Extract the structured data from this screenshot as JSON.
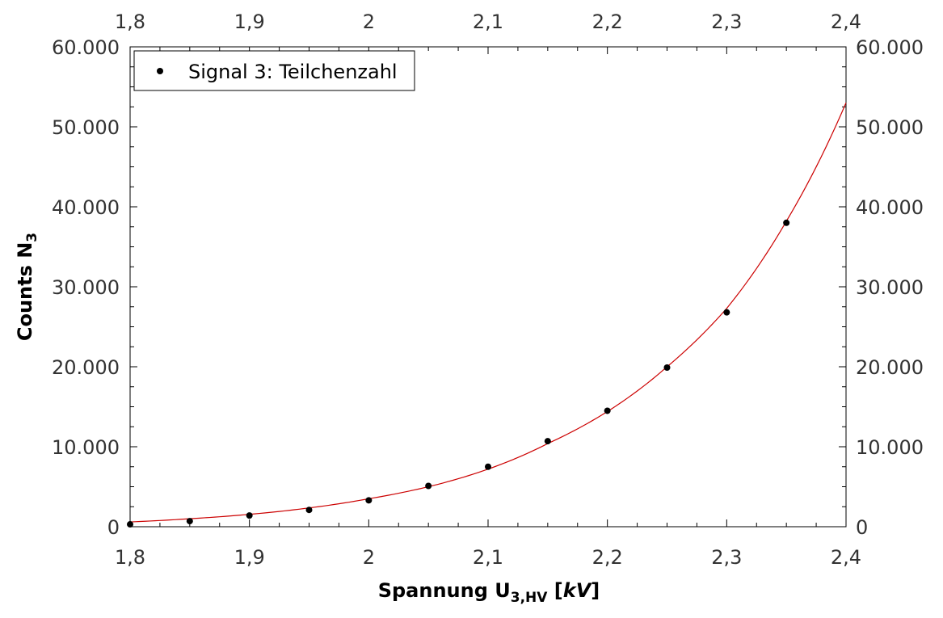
{
  "chart_data": {
    "type": "scatter",
    "xlabel": {
      "main": "Spannung U",
      "sub": "3,HV",
      "unit_open": " [",
      "unit": "kV",
      "unit_close": "]"
    },
    "ylabel": {
      "main": "Counts N",
      "sub": "3"
    },
    "xlim": [
      1.8,
      2.4
    ],
    "ylim": [
      0,
      60000
    ],
    "x_ticks": [
      {
        "value": 1.8,
        "label": "1,8"
      },
      {
        "value": 1.9,
        "label": "1,9"
      },
      {
        "value": 2.0,
        "label": "2"
      },
      {
        "value": 2.1,
        "label": "2,1"
      },
      {
        "value": 2.2,
        "label": "2,2"
      },
      {
        "value": 2.3,
        "label": "2,3"
      },
      {
        "value": 2.4,
        "label": "2,4"
      }
    ],
    "y_ticks": [
      {
        "value": 0,
        "label": "0"
      },
      {
        "value": 10000,
        "label": "10.000"
      },
      {
        "value": 20000,
        "label": "20.000"
      },
      {
        "value": 30000,
        "label": "30.000"
      },
      {
        "value": 40000,
        "label": "40.000"
      },
      {
        "value": 50000,
        "label": "50.000"
      },
      {
        "value": 60000,
        "label": "60.000"
      }
    ],
    "grid": false,
    "legend_placement": "top-left",
    "series": [
      {
        "name": "Signal 3: Teilchenzahl",
        "type": "scatter",
        "color": "#000000",
        "x": [
          1.8,
          1.85,
          1.9,
          1.95,
          2.0,
          2.05,
          2.1,
          2.15,
          2.2,
          2.25,
          2.3,
          2.35
        ],
        "y": [
          300,
          700,
          1400,
          2100,
          3300,
          5100,
          7500,
          10700,
          14500,
          19900,
          26800,
          38000
        ]
      },
      {
        "type": "line",
        "color": "#cc0000",
        "x": [
          1.8,
          1.85,
          1.9,
          1.95,
          2.0,
          2.05,
          2.1,
          2.15,
          2.2,
          2.25,
          2.3,
          2.35,
          2.4
        ],
        "y": [
          600,
          1000,
          1550,
          2350,
          3500,
          5000,
          7200,
          10400,
          14400,
          20000,
          27300,
          38200,
          53000
        ]
      }
    ]
  }
}
